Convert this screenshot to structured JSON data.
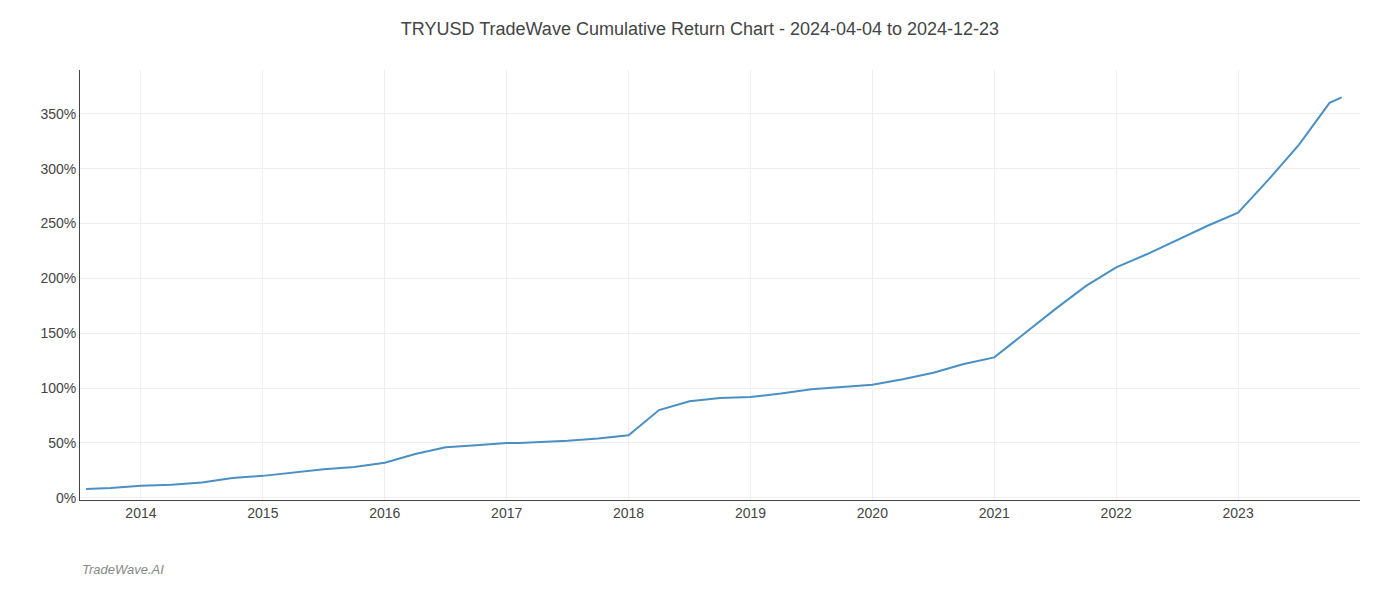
{
  "chart_data": {
    "type": "line",
    "title": "TRYUSD TradeWave Cumulative Return Chart - 2024-04-04 to 2024-12-23",
    "annotations": [
      "TradeWave.AI"
    ],
    "x": [
      2013.55,
      2013.75,
      2014.0,
      2014.25,
      2014.5,
      2014.75,
      2015.0,
      2015.25,
      2015.5,
      2015.75,
      2016.0,
      2016.25,
      2016.5,
      2016.75,
      2017.0,
      2017.1,
      2017.5,
      2017.75,
      2018.0,
      2018.25,
      2018.5,
      2018.75,
      2019.0,
      2019.25,
      2019.5,
      2019.75,
      2020.0,
      2020.25,
      2020.5,
      2020.75,
      2021.0,
      2021.25,
      2021.5,
      2021.75,
      2022.0,
      2022.25,
      2022.5,
      2022.75,
      2023.0,
      2023.25,
      2023.5,
      2023.75,
      2023.85
    ],
    "values": [
      0.08,
      0.09,
      0.11,
      0.12,
      0.14,
      0.18,
      0.2,
      0.23,
      0.26,
      0.28,
      0.32,
      0.4,
      0.46,
      0.48,
      0.5,
      0.5,
      0.52,
      0.54,
      0.57,
      0.8,
      0.88,
      0.91,
      0.92,
      0.95,
      0.99,
      1.01,
      1.03,
      1.08,
      1.14,
      1.22,
      1.28,
      1.5,
      1.72,
      1.93,
      2.1,
      2.22,
      2.35,
      2.48,
      2.6,
      2.9,
      3.22,
      3.6,
      3.65
    ],
    "color": "#4a90c4",
    "xlim": [
      2013.5,
      2024.0
    ],
    "xticks": [
      2014,
      2015,
      2016,
      2017,
      2018,
      2019,
      2020,
      2021,
      2022,
      2023
    ],
    "ylim": [
      -0.02,
      3.9
    ],
    "yticks": [
      {
        "value": 0.0,
        "label": "0%"
      },
      {
        "value": 0.5,
        "label": "50%"
      },
      {
        "value": 1.0,
        "label": "100%"
      },
      {
        "value": 1.5,
        "label": "150%"
      },
      {
        "value": 2.0,
        "label": "200%"
      },
      {
        "value": 2.5,
        "label": "250%"
      },
      {
        "value": 3.0,
        "label": "300%"
      },
      {
        "value": 3.5,
        "label": "350%"
      }
    ],
    "grid": true
  }
}
